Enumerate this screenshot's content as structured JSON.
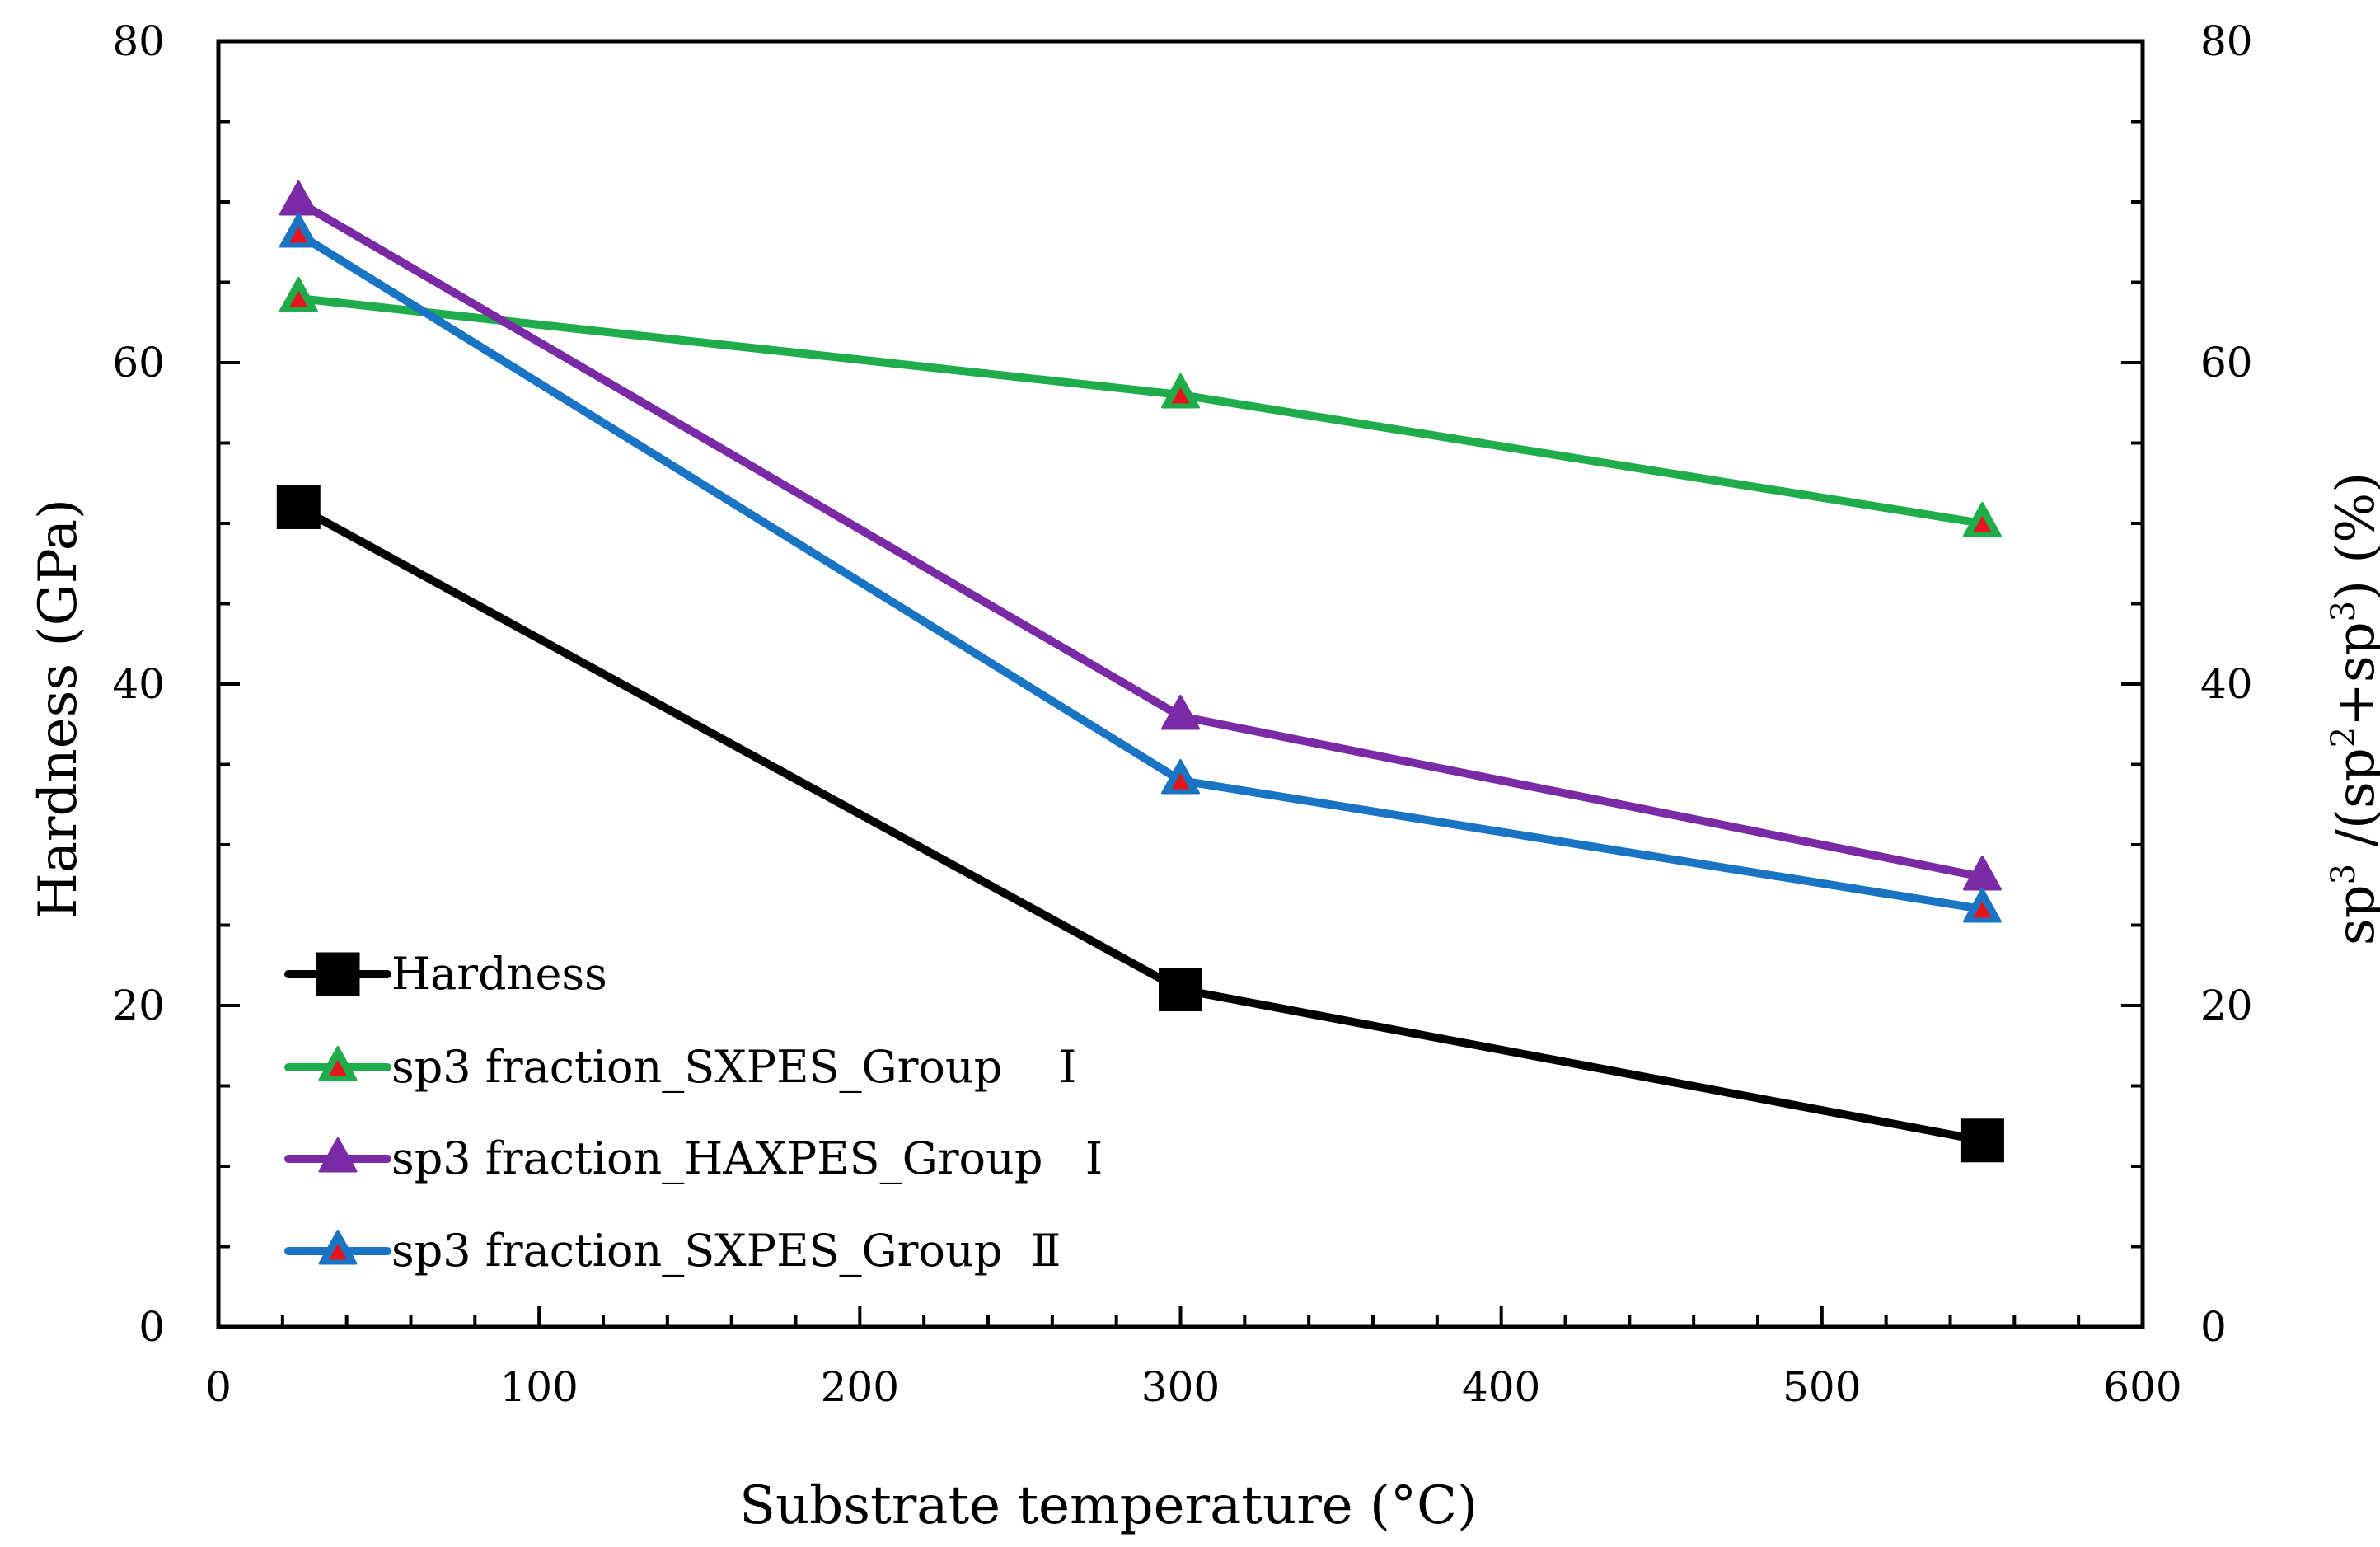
{
  "chart_data": {
    "type": "line",
    "x_axis": {
      "label": "Substrate temperature (°C)",
      "range": [
        0,
        600
      ],
      "ticks": [
        "0",
        "100",
        "200",
        "300",
        "400",
        "500",
        "600"
      ],
      "tick_values": [
        0,
        100,
        200,
        300,
        400,
        500,
        600
      ]
    },
    "y_axis_left": {
      "label": "Hardness (GPa)",
      "range": [
        0,
        80
      ],
      "ticks": [
        "0",
        "20",
        "40",
        "60",
        "80"
      ],
      "tick_values": [
        0,
        20,
        40,
        60,
        80
      ]
    },
    "y_axis_right": {
      "label_parts": [
        "sp",
        "3",
        " /(sp",
        "2",
        "+sp",
        "3",
        ") (%)"
      ],
      "range": [
        0,
        80
      ],
      "ticks": [
        "0",
        "20",
        "40",
        "60",
        "80"
      ],
      "tick_values": [
        0,
        20,
        40,
        60,
        80
      ]
    },
    "grid": false,
    "legend_position": "bottom-left",
    "series": [
      {
        "name": "Hardness",
        "axis": "left",
        "color": "#000000",
        "marker": "square",
        "marker_fill": "#000000",
        "x": [
          25,
          300,
          550
        ],
        "y": [
          51,
          21,
          11.6
        ]
      },
      {
        "name": "sp3 fraction_SXPES_Group    Ⅰ",
        "axis": "right",
        "color": "#1fad4b",
        "marker": "triangle",
        "marker_fill": "#e8141b",
        "x": [
          25,
          300,
          550
        ],
        "y": [
          64,
          58,
          50
        ]
      },
      {
        "name": "sp3 fraction_HAXPES_Group   Ⅰ",
        "axis": "right",
        "color": "#7b2aa6",
        "marker": "triangle",
        "marker_fill": "#7b2aa6",
        "x": [
          25,
          300,
          550
        ],
        "y": [
          70,
          38,
          28
        ]
      },
      {
        "name": "sp3 fraction_SXPES_Group  Ⅱ",
        "axis": "right",
        "color": "#1a74c4",
        "marker": "triangle",
        "marker_fill": "#e8141b",
        "x": [
          25,
          300,
          550
        ],
        "y": [
          68,
          34,
          26
        ]
      }
    ]
  }
}
